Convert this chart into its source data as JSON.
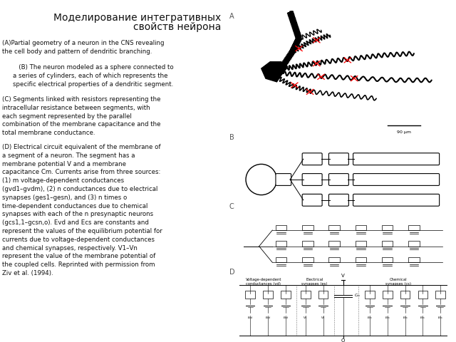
{
  "title_line1": "Моделирование интегративных",
  "title_line2": "свойств нейрона",
  "title_fontsize": 11,
  "background_color": "#ffffff",
  "text_color": "#000000",
  "left_text_A": "(A)Partial geometry of a neuron in the CNS revealing\nthe cell body and pattern of dendritic branching.",
  "left_text_B": "   (B) The neuron modeled as a sphere connected to\na series of cylinders, each of which represents the\nspecific electrical properties of a dendritic segment.",
  "left_text_C": "(C) Segments linked with resistors representing the\nintracellular resistance between segments, with\neach segment represented by the parallel\ncombination of the membrane capacitance and the\ntotal membrane conductance.",
  "left_text_D": "(D) Electrical circuit equivalent of the membrane of\na segment of a neuron. The segment has a\nmembrane potential V and a membrane\ncapacitance Cm. Currents arise from three sources:\n(1) m voltage-dependent conductances\n(gvd1–gvdm), (2) n conductances due to electrical\nsynapses (ges1–gesn), and (3) n times o\ntime-dependent conductances due to chemical\nsynapses with each of the n presynaptic neurons\n(gcs1,1–gcsn,o). Evd and Ecs are constants and\nrepresent the values of the equilibrium potential for\ncurrents due to voltage-dependent conductances\nand chemical synapses, respectively. V1–Vn\nrepresent the value of the membrane potential of\nthe coupled cells. Reprinted with permission from\nZiv et al. (1994).",
  "fig_width": 6.4,
  "fig_height": 4.8,
  "dpi": 100
}
